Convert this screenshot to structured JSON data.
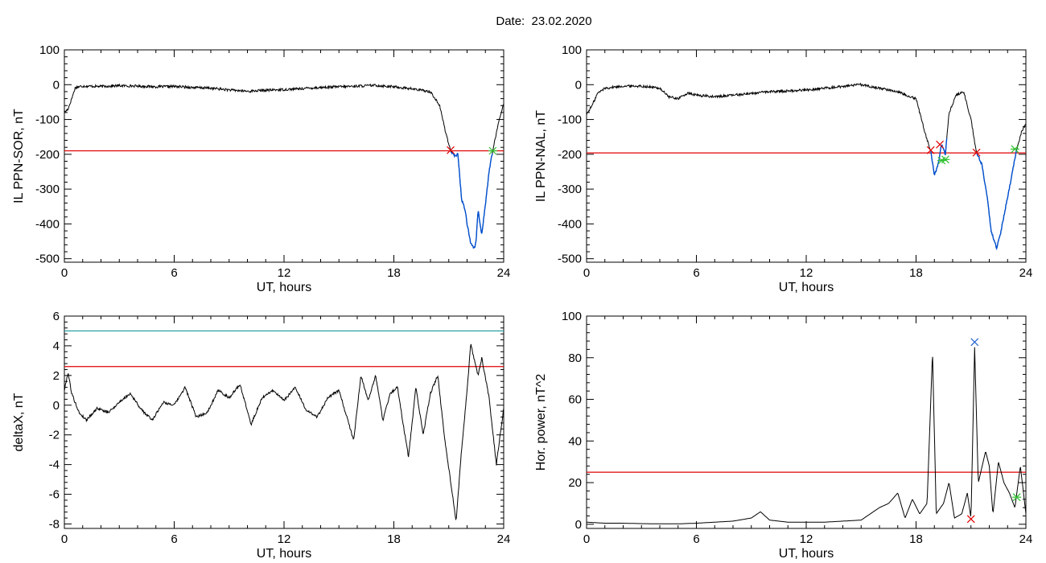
{
  "figure": {
    "title": "Date:  23.02.2020"
  },
  "colors": {
    "threshold": "#e00000",
    "threshold2": "#1a9a9a",
    "highlight": "#0050d0",
    "start_marker": "#e00000",
    "end_marker": "#30c030",
    "peak_marker": "#2060d0"
  },
  "chart_data": [
    {
      "id": "panel1",
      "type": "line",
      "xlabel": "UT, hours",
      "ylabel": "IL PPN-SOR, nT",
      "xlim": [
        0,
        24
      ],
      "ylim": [
        -510,
        100
      ],
      "xticks": [
        0,
        6,
        12,
        18,
        24
      ],
      "yticks": [
        100,
        0,
        -100,
        -200,
        -300,
        -400,
        -500
      ],
      "threshold": -190,
      "points": [
        [
          0,
          -80
        ],
        [
          0.2,
          -70
        ],
        [
          0.4,
          -40
        ],
        [
          0.6,
          -8
        ],
        [
          1,
          -4
        ],
        [
          2,
          -5
        ],
        [
          3,
          -3
        ],
        [
          4,
          -4
        ],
        [
          5,
          -6
        ],
        [
          6,
          -5
        ],
        [
          7,
          -8
        ],
        [
          8,
          -10
        ],
        [
          9,
          -15
        ],
        [
          10,
          -19
        ],
        [
          11,
          -16
        ],
        [
          12,
          -14
        ],
        [
          13,
          -11
        ],
        [
          14,
          -8
        ],
        [
          15,
          -6
        ],
        [
          16,
          -4
        ],
        [
          17,
          -2
        ],
        [
          18,
          -6
        ],
        [
          19,
          -12
        ],
        [
          20,
          -20
        ],
        [
          20.5,
          -60
        ],
        [
          20.8,
          -130
        ],
        [
          21.0,
          -170
        ],
        [
          21.1,
          -190
        ],
        [
          21.3,
          -205
        ],
        [
          21.5,
          -200
        ],
        [
          21.7,
          -330
        ],
        [
          21.9,
          -360
        ],
        [
          22.0,
          -400
        ],
        [
          22.2,
          -455
        ],
        [
          22.4,
          -470
        ],
        [
          22.5,
          -445
        ],
        [
          22.6,
          -360
        ],
        [
          22.8,
          -430
        ],
        [
          23.0,
          -345
        ],
        [
          23.2,
          -250
        ],
        [
          23.4,
          -190
        ],
        [
          23.6,
          -140
        ],
        [
          23.8,
          -90
        ],
        [
          24,
          -55
        ]
      ],
      "highlight_range": [
        21.1,
        23.4
      ],
      "markers": [
        {
          "x": 21.1,
          "y": -188,
          "kind": "start"
        },
        {
          "x": 23.4,
          "y": -190,
          "kind": "end"
        }
      ]
    },
    {
      "id": "panel2",
      "type": "line",
      "xlabel": "UT, hours",
      "ylabel": "IL PPN-NAL, nT",
      "xlim": [
        0,
        24
      ],
      "ylim": [
        -510,
        100
      ],
      "xticks": [
        0,
        6,
        12,
        18,
        24
      ],
      "yticks": [
        100,
        0,
        -100,
        -200,
        -300,
        -400,
        -500
      ],
      "threshold": -196,
      "points": [
        [
          0,
          -85
        ],
        [
          0.3,
          -60
        ],
        [
          0.6,
          -25
        ],
        [
          1,
          -10
        ],
        [
          2,
          -4
        ],
        [
          3,
          -4
        ],
        [
          4,
          -10
        ],
        [
          4.5,
          -35
        ],
        [
          5,
          -40
        ],
        [
          5.5,
          -25
        ],
        [
          6,
          -30
        ],
        [
          7,
          -35
        ],
        [
          8,
          -30
        ],
        [
          9,
          -25
        ],
        [
          10,
          -20
        ],
        [
          11,
          -18
        ],
        [
          12,
          -15
        ],
        [
          13,
          -10
        ],
        [
          14,
          -5
        ],
        [
          15,
          0
        ],
        [
          16,
          -10
        ],
        [
          17,
          -20
        ],
        [
          18,
          -40
        ],
        [
          18.5,
          -140
        ],
        [
          18.8,
          -190
        ],
        [
          19.0,
          -260
        ],
        [
          19.2,
          -230
        ],
        [
          19.4,
          -170
        ],
        [
          19.6,
          -200
        ],
        [
          19.8,
          -80
        ],
        [
          20.2,
          -30
        ],
        [
          20.6,
          -20
        ],
        [
          21.0,
          -100
        ],
        [
          21.3,
          -195
        ],
        [
          21.6,
          -230
        ],
        [
          21.9,
          -330
        ],
        [
          22.1,
          -420
        ],
        [
          22.4,
          -470
        ],
        [
          22.6,
          -430
        ],
        [
          22.9,
          -350
        ],
        [
          23.2,
          -270
        ],
        [
          23.5,
          -185
        ],
        [
          23.8,
          -130
        ],
        [
          24,
          -115
        ]
      ],
      "highlight_ranges": [
        [
          18.8,
          19.7
        ],
        [
          21.3,
          23.5
        ]
      ],
      "markers": [
        {
          "x": 18.8,
          "y": -188,
          "kind": "start"
        },
        {
          "x": 19.3,
          "y": -172,
          "kind": "start"
        },
        {
          "x": 21.3,
          "y": -195,
          "kind": "start"
        },
        {
          "x": 19.4,
          "y": -218,
          "kind": "end"
        },
        {
          "x": 19.6,
          "y": -215,
          "kind": "end"
        },
        {
          "x": 23.4,
          "y": -185,
          "kind": "end"
        }
      ]
    },
    {
      "id": "panel3",
      "type": "line",
      "xlabel": "UT, hours",
      "ylabel": "deltaX, nT",
      "xlim": [
        0,
        24
      ],
      "ylim": [
        -8.3,
        6
      ],
      "xticks": [
        0,
        6,
        12,
        18,
        24
      ],
      "yticks": [
        6,
        4,
        2,
        0,
        -2,
        -4,
        -6,
        -8
      ],
      "threshold": 2.6,
      "threshold2": 5.0,
      "points": [
        [
          0,
          1.0
        ],
        [
          0.2,
          2.2
        ],
        [
          0.4,
          0.8
        ],
        [
          0.8,
          -0.5
        ],
        [
          1.2,
          -1.0
        ],
        [
          1.8,
          -0.2
        ],
        [
          2.4,
          -0.5
        ],
        [
          3.0,
          0.2
        ],
        [
          3.6,
          0.8
        ],
        [
          4.2,
          -0.3
        ],
        [
          4.8,
          -1.0
        ],
        [
          5.4,
          0.2
        ],
        [
          6.0,
          0.0
        ],
        [
          6.6,
          1.2
        ],
        [
          7.2,
          -0.8
        ],
        [
          7.8,
          -0.5
        ],
        [
          8.4,
          1.0
        ],
        [
          9.0,
          0.5
        ],
        [
          9.6,
          1.4
        ],
        [
          10.2,
          -1.3
        ],
        [
          10.8,
          0.5
        ],
        [
          11.4,
          1.0
        ],
        [
          12.0,
          0.3
        ],
        [
          12.6,
          1.2
        ],
        [
          13.2,
          -0.3
        ],
        [
          13.8,
          -0.8
        ],
        [
          14.4,
          0.5
        ],
        [
          15.0,
          1.0
        ],
        [
          15.6,
          -1.5
        ],
        [
          15.8,
          -2.4
        ],
        [
          16.2,
          2.0
        ],
        [
          16.6,
          0.3
        ],
        [
          17.0,
          2.0
        ],
        [
          17.4,
          -1.0
        ],
        [
          17.8,
          0.8
        ],
        [
          18.2,
          1.2
        ],
        [
          18.6,
          -2.0
        ],
        [
          18.8,
          -3.5
        ],
        [
          19.2,
          1.2
        ],
        [
          19.6,
          -2.0
        ],
        [
          20.0,
          0.8
        ],
        [
          20.4,
          2.0
        ],
        [
          20.8,
          -2.5
        ],
        [
          21.2,
          -6.0
        ],
        [
          21.4,
          -7.8
        ],
        [
          21.7,
          -3.0
        ],
        [
          22.0,
          1.0
        ],
        [
          22.2,
          4.1
        ],
        [
          22.6,
          2.0
        ],
        [
          22.8,
          3.2
        ],
        [
          23.2,
          0.5
        ],
        [
          23.6,
          -4.0
        ],
        [
          24,
          -0.2
        ]
      ]
    },
    {
      "id": "panel4",
      "type": "line",
      "xlabel": "UT, hours",
      "ylabel": "Hor. power, nT^2",
      "xlim": [
        0,
        24
      ],
      "ylim": [
        -2,
        100
      ],
      "xticks": [
        0,
        6,
        12,
        18,
        24
      ],
      "yticks": [
        100,
        80,
        60,
        40,
        20,
        0
      ],
      "threshold": 25,
      "points": [
        [
          0,
          1
        ],
        [
          1,
          0.5
        ],
        [
          2,
          0.5
        ],
        [
          3,
          0.3
        ],
        [
          4,
          0.2
        ],
        [
          5,
          0.2
        ],
        [
          6,
          0.5
        ],
        [
          7,
          1
        ],
        [
          8,
          1.5
        ],
        [
          9,
          3
        ],
        [
          9.5,
          6
        ],
        [
          10,
          2
        ],
        [
          11,
          1
        ],
        [
          12,
          1
        ],
        [
          13,
          1
        ],
        [
          14,
          1.5
        ],
        [
          15,
          2
        ],
        [
          15.5,
          5
        ],
        [
          16,
          8
        ],
        [
          16.5,
          10
        ],
        [
          17,
          15
        ],
        [
          17.4,
          3
        ],
        [
          17.8,
          12
        ],
        [
          18.2,
          5
        ],
        [
          18.6,
          10
        ],
        [
          18.9,
          83
        ],
        [
          19.1,
          5
        ],
        [
          19.5,
          10
        ],
        [
          19.8,
          20
        ],
        [
          20.1,
          3
        ],
        [
          20.5,
          5
        ],
        [
          20.8,
          15
        ],
        [
          21.0,
          3
        ],
        [
          21.2,
          85
        ],
        [
          21.4,
          20
        ],
        [
          21.8,
          35
        ],
        [
          22.0,
          28
        ],
        [
          22.2,
          5
        ],
        [
          22.5,
          30
        ],
        [
          22.8,
          20
        ],
        [
          23.1,
          15
        ],
        [
          23.4,
          8
        ],
        [
          23.7,
          28
        ],
        [
          24,
          5
        ]
      ],
      "markers": [
        {
          "x": 21.2,
          "y": 87.5,
          "kind": "peak"
        },
        {
          "x": 21.0,
          "y": 2.5,
          "kind": "start"
        },
        {
          "x": 23.5,
          "y": 13,
          "kind": "end"
        }
      ]
    }
  ]
}
